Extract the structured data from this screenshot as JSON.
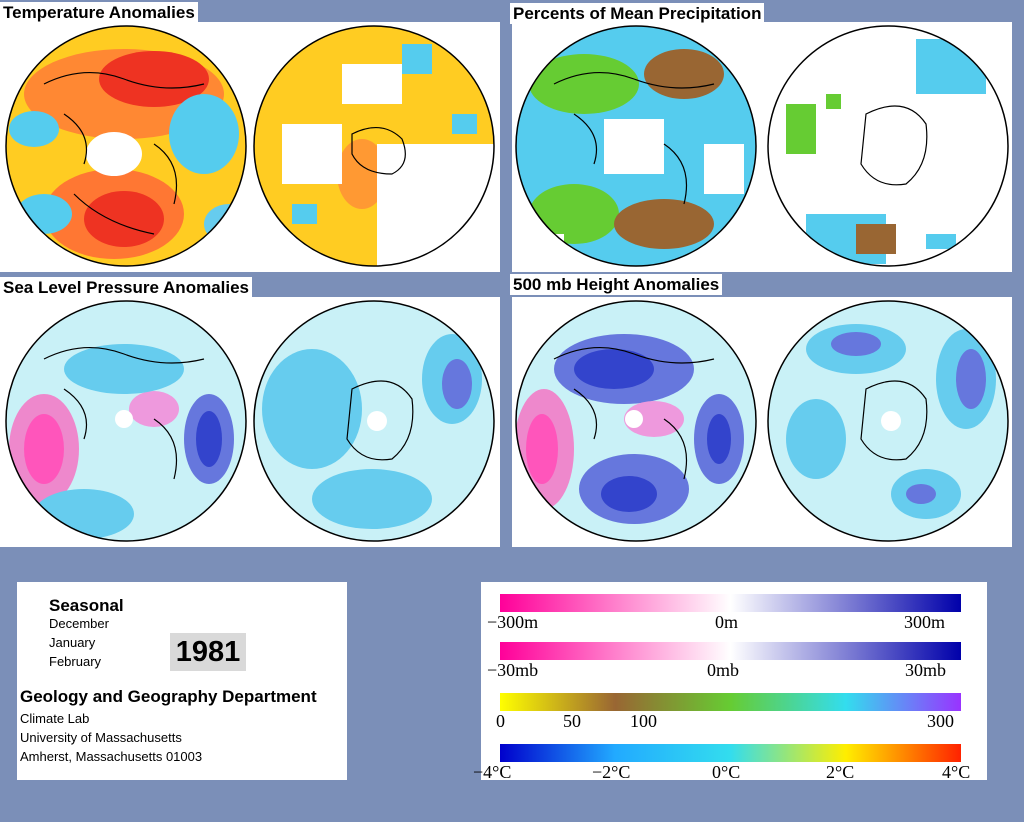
{
  "panels": {
    "temperature": {
      "title": "Temperature Anomalies"
    },
    "precipitation": {
      "title": "Percents of Mean Precipitation"
    },
    "sea_level_pressure": {
      "title": "Sea Level Pressure Anomalies"
    },
    "height_500mb": {
      "title": "500 mb Height Anomalies"
    }
  },
  "info": {
    "season": "Seasonal",
    "months": [
      "December",
      "January",
      "February"
    ],
    "year": "1981",
    "department": "Geology and Geography Department",
    "lab": "Climate Lab",
    "university": "University of Massachusetts",
    "address": "Amherst, Massachusetts 01003"
  },
  "legends": {
    "height": {
      "labels": [
        "−300m",
        "0m",
        "300m"
      ],
      "colors": [
        "#ff0099",
        "#ffffff",
        "#0000aa"
      ]
    },
    "pressure": {
      "labels": [
        "−30mb",
        "0mb",
        "30mb"
      ],
      "colors": [
        "#ff0099",
        "#ffffff",
        "#0000aa"
      ]
    },
    "precip": {
      "labels": [
        "0",
        "50",
        "100",
        "300"
      ],
      "colors": [
        "#ffff00",
        "#996633",
        "#66cc33",
        "#33ddee",
        "#9933ff"
      ]
    },
    "temp": {
      "labels": [
        "−4°C",
        "−2°C",
        "0°C",
        "2°C",
        "4°C"
      ],
      "colors": [
        "#0000cc",
        "#22aaff",
        "#33ddee",
        "#ffee00",
        "#ff2200"
      ]
    }
  }
}
